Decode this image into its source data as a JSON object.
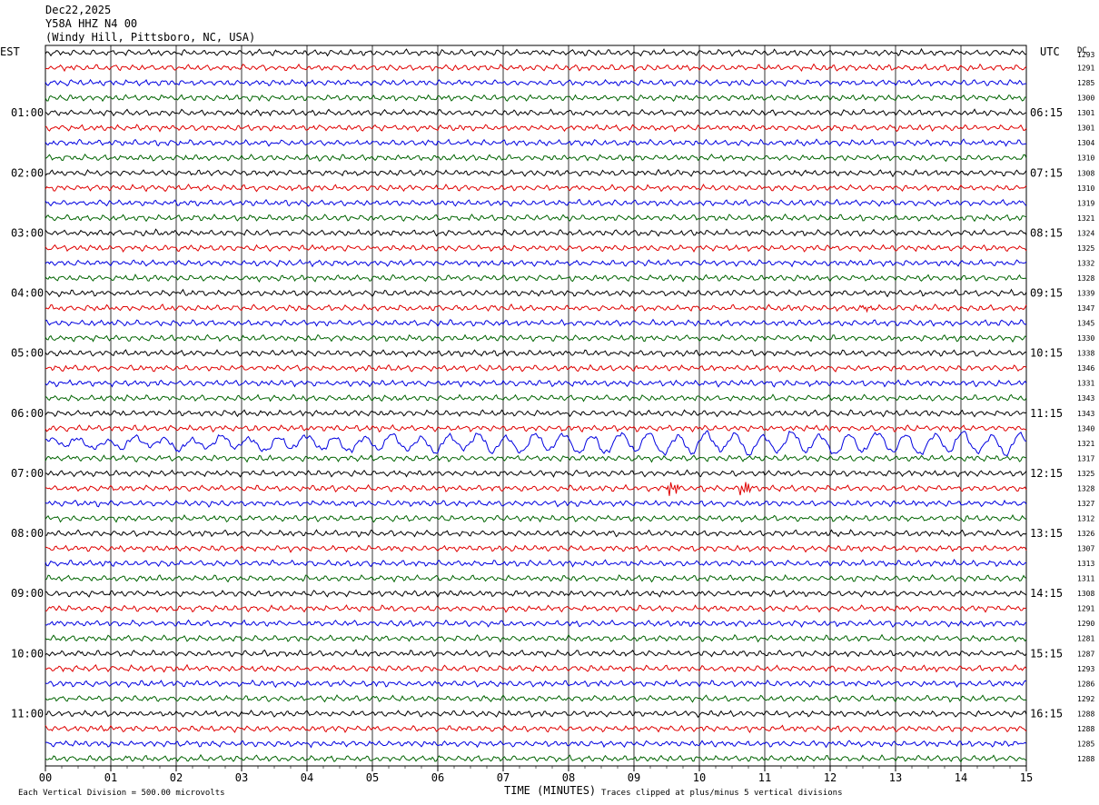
{
  "header": {
    "date": "Dec22,2025",
    "station": "Y58A HHZ N4 00",
    "location": "(Windy Hill, Pittsboro, NC, USA)"
  },
  "labels": {
    "left_tz": "EST",
    "right_tz": "UTC",
    "dc_header": "DC",
    "xlabel": "TIME (MINUTES)",
    "scale_note": "Each Vertical Division =  500.00 microvolts",
    "clip_note": "Traces clipped at plus/minus 5 vertical divisions"
  },
  "chart_data": {
    "type": "line",
    "title": "Y58A HHZ N4 00",
    "xlabel": "TIME (MINUTES)",
    "xlim": [
      0,
      15
    ],
    "x_ticks": [
      "00",
      "01",
      "02",
      "03",
      "04",
      "05",
      "06",
      "07",
      "08",
      "09",
      "10",
      "11",
      "12",
      "13",
      "14",
      "15"
    ],
    "trace_colors": [
      "#000000",
      "#e00000",
      "#0000e0",
      "#006400"
    ],
    "trace_count": 48,
    "left_time_labels": [
      "01:00",
      "02:00",
      "03:00",
      "04:00",
      "05:00",
      "06:00",
      "07:00",
      "08:00",
      "09:00",
      "10:00",
      "11:00"
    ],
    "right_time_labels": [
      "06:15",
      "07:15",
      "08:15",
      "09:15",
      "10:15",
      "11:15",
      "12:15",
      "13:15",
      "14:15",
      "15:15",
      "16:15"
    ],
    "dc_offsets": [
      1293,
      1291,
      1285,
      1300,
      1301,
      1301,
      1304,
      1310,
      1308,
      1310,
      1319,
      1321,
      1324,
      1325,
      1332,
      1328,
      1339,
      1347,
      1345,
      1330,
      1338,
      1346,
      1331,
      1343,
      1343,
      1340,
      1321,
      1317,
      1325,
      1328,
      1327,
      1312,
      1326,
      1307,
      1313,
      1311,
      1308,
      1291,
      1290,
      1281,
      1287,
      1293,
      1286,
      1292,
      1288,
      1288,
      1285,
      1288
    ],
    "events": [
      {
        "trace": 17,
        "minute": 12.5,
        "note": "local event"
      },
      {
        "trace": 26,
        "minute_range": [
          0,
          15
        ],
        "note": "long-period surface waves"
      },
      {
        "trace": 29,
        "minute": 9.6,
        "note": "spike"
      },
      {
        "trace": 29,
        "minute": 10.7,
        "note": "spike"
      }
    ]
  }
}
